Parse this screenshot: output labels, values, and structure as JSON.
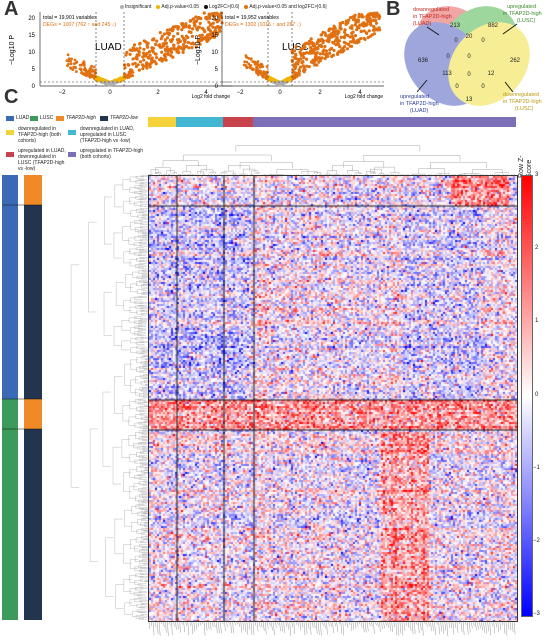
{
  "panels": {
    "a": "A",
    "b": "B",
    "c": "C"
  },
  "volcano_legend": {
    "items": [
      {
        "label": "Insignificant",
        "color": "#b0b0b0"
      },
      {
        "label": "Adj.p-value<0.05",
        "color": "#f0b400"
      },
      {
        "label": "Log2FC>|0.6|",
        "color": "#111111"
      },
      {
        "label": "Adj.p-value<0.05 and log2FC>|0.6|",
        "color": "#e07010"
      }
    ]
  },
  "luad": {
    "label": "LUAD",
    "total": "total = 19,901 variables",
    "degs": "DEGs = 1007 (762 ↑ and 245 ↓)",
    "ylabel": "−Log10 P",
    "xlabel": "Log2 fold change",
    "yticks": [
      "0",
      "5",
      "10",
      "15",
      "20"
    ],
    "xticks": [
      "−2",
      "0",
      "2",
      "4"
    ]
  },
  "lusc": {
    "label": "LUSC",
    "total": "total = 19,952 variables",
    "degs": "DEGs = 1302 (1015 ↑ and 287 ↓)",
    "ylabel": "−Log10 P",
    "xlabel": "Log2 fold change",
    "yticks": [
      "0",
      "5",
      "10",
      "15",
      "20"
    ],
    "xticks": [
      "−2",
      "0",
      "2",
      "4"
    ]
  },
  "venn": {
    "labels": {
      "red": "downregulated in TFAP2D-high (LUAD)",
      "green": "upregulated in TFAP2D-high (LUSC)",
      "blue": "upregulated in TFAP2D-high (LUAD)",
      "yellow": "downregulated in TFAP2D-high (LUSC)"
    },
    "counts": [
      "213",
      "882",
      "0",
      "20",
      "0",
      "636",
      "0",
      "0",
      "262",
      "113",
      "0",
      "12",
      "0",
      "0",
      "13"
    ]
  },
  "heatmap": {
    "legend": {
      "luad": "LUAD",
      "lusc": "LUSC",
      "high": "TFAP2D-high",
      "low": "TFAP2D-low",
      "cat1": "downregulated in TFAP2D-high (both cohorts)",
      "cat2": "downregulated in LUAD, upregulated in LUSC (TFAP2D-high vs -low)",
      "cat3": "upregulated in LUAD, downregulated in LUSC (TFAP2D-high vs -low)",
      "cat4": "upregulated in TFAP2D-high (both cohorts)"
    },
    "colorbar": {
      "title": "Row Z-Score",
      "ticks": [
        "3",
        "2",
        "1",
        "0",
        "−1",
        "−2",
        "−3"
      ]
    }
  },
  "colors": {
    "luad": "#3a6ab5",
    "lusc": "#3c9a5a",
    "high": "#f08a28",
    "low": "#23344e",
    "cat1": "#f5d23a",
    "cat2": "#43b6d4",
    "cat3": "#c9434c",
    "cat4": "#7c6fb8"
  }
}
